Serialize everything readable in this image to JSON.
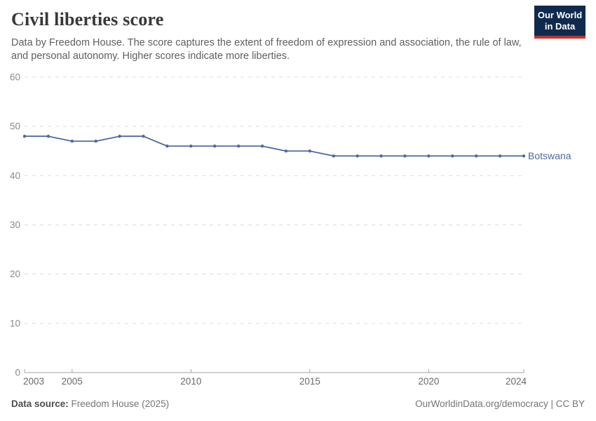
{
  "header": {
    "title": "Civil liberties score",
    "subtitle": "Data by Freedom House. The score captures the extent of freedom of expression and association, the rule of law, and personal autonomy. Higher scores indicate more liberties.",
    "logo": {
      "line1": "Our World",
      "line2": "in Data"
    }
  },
  "chart_data": {
    "type": "line",
    "title": "Civil liberties score",
    "x": [
      2003,
      2004,
      2005,
      2006,
      2007,
      2008,
      2009,
      2010,
      2011,
      2012,
      2013,
      2014,
      2015,
      2016,
      2017,
      2018,
      2019,
      2020,
      2021,
      2022,
      2023,
      2024
    ],
    "series": [
      {
        "name": "Botswana",
        "color": "#4c6a9c",
        "values": [
          48,
          48,
          47,
          47,
          48,
          48,
          46,
          46,
          46,
          46,
          46,
          45,
          45,
          44,
          44,
          44,
          44,
          44,
          44,
          44,
          44,
          44
        ]
      }
    ],
    "ylim": [
      0,
      60
    ],
    "yticks": [
      0,
      10,
      20,
      30,
      40,
      50,
      60
    ],
    "xticks": [
      2003,
      2005,
      2010,
      2015,
      2020,
      2024
    ],
    "xlabel": "",
    "ylabel": "",
    "grid": "horizontal-dashed",
    "legend_position": "end-of-line"
  },
  "footer": {
    "source_label": "Data source:",
    "source_value": "Freedom House (2025)",
    "right_text": "OurWorldinData.org/democracy | CC BY"
  },
  "colors": {
    "line": "#4c6a9c",
    "gridline": "#dcdcdc",
    "axis": "#a3a3a3",
    "y_label": "#8a8a8a",
    "x_label": "#696969",
    "title": "#383838",
    "subtitle": "#5f5f5f",
    "footer_text": "#757575",
    "logo_background": "#102a4d",
    "logo_stripe": "#c0342c"
  }
}
